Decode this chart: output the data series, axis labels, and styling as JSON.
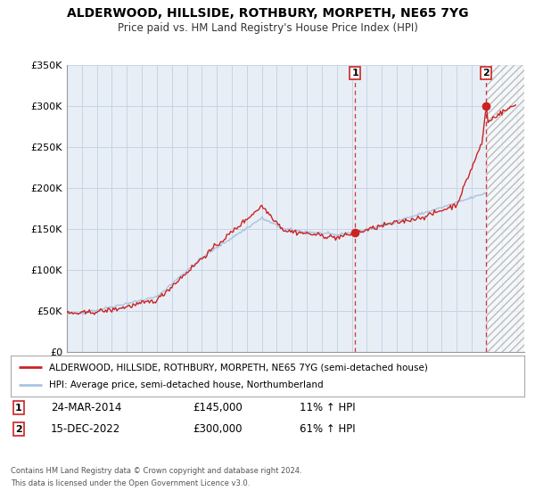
{
  "title": "ALDERWOOD, HILLSIDE, ROTHBURY, MORPETH, NE65 7YG",
  "subtitle": "Price paid vs. HM Land Registry's House Price Index (HPI)",
  "legend_line1": "ALDERWOOD, HILLSIDE, ROTHBURY, MORPETH, NE65 7YG (semi-detached house)",
  "legend_line2": "HPI: Average price, semi-detached house, Northumberland",
  "sale1_date": "24-MAR-2014",
  "sale1_price": "£145,000",
  "sale1_hpi": "11% ↑ HPI",
  "sale2_date": "15-DEC-2022",
  "sale2_price": "£300,000",
  "sale2_hpi": "61% ↑ HPI",
  "footer1": "Contains HM Land Registry data © Crown copyright and database right 2024.",
  "footer2": "This data is licensed under the Open Government Licence v3.0.",
  "hpi_color": "#a8c4e0",
  "sale_color": "#cc2222",
  "dashed_line_color": "#cc2222",
  "background_color": "#ffffff",
  "grid_color": "#c8d4e4",
  "plot_bg_color": "#e8eef6",
  "ylim": [
    0,
    350000
  ],
  "xlim_start": 1995.0,
  "xlim_end": 2025.5,
  "sale1_x": 2014.22,
  "sale1_y": 145000,
  "sale2_x": 2022.96,
  "sale2_y": 300000,
  "hatch_region_start": 2022.96,
  "hatch_region_end": 2025.5
}
